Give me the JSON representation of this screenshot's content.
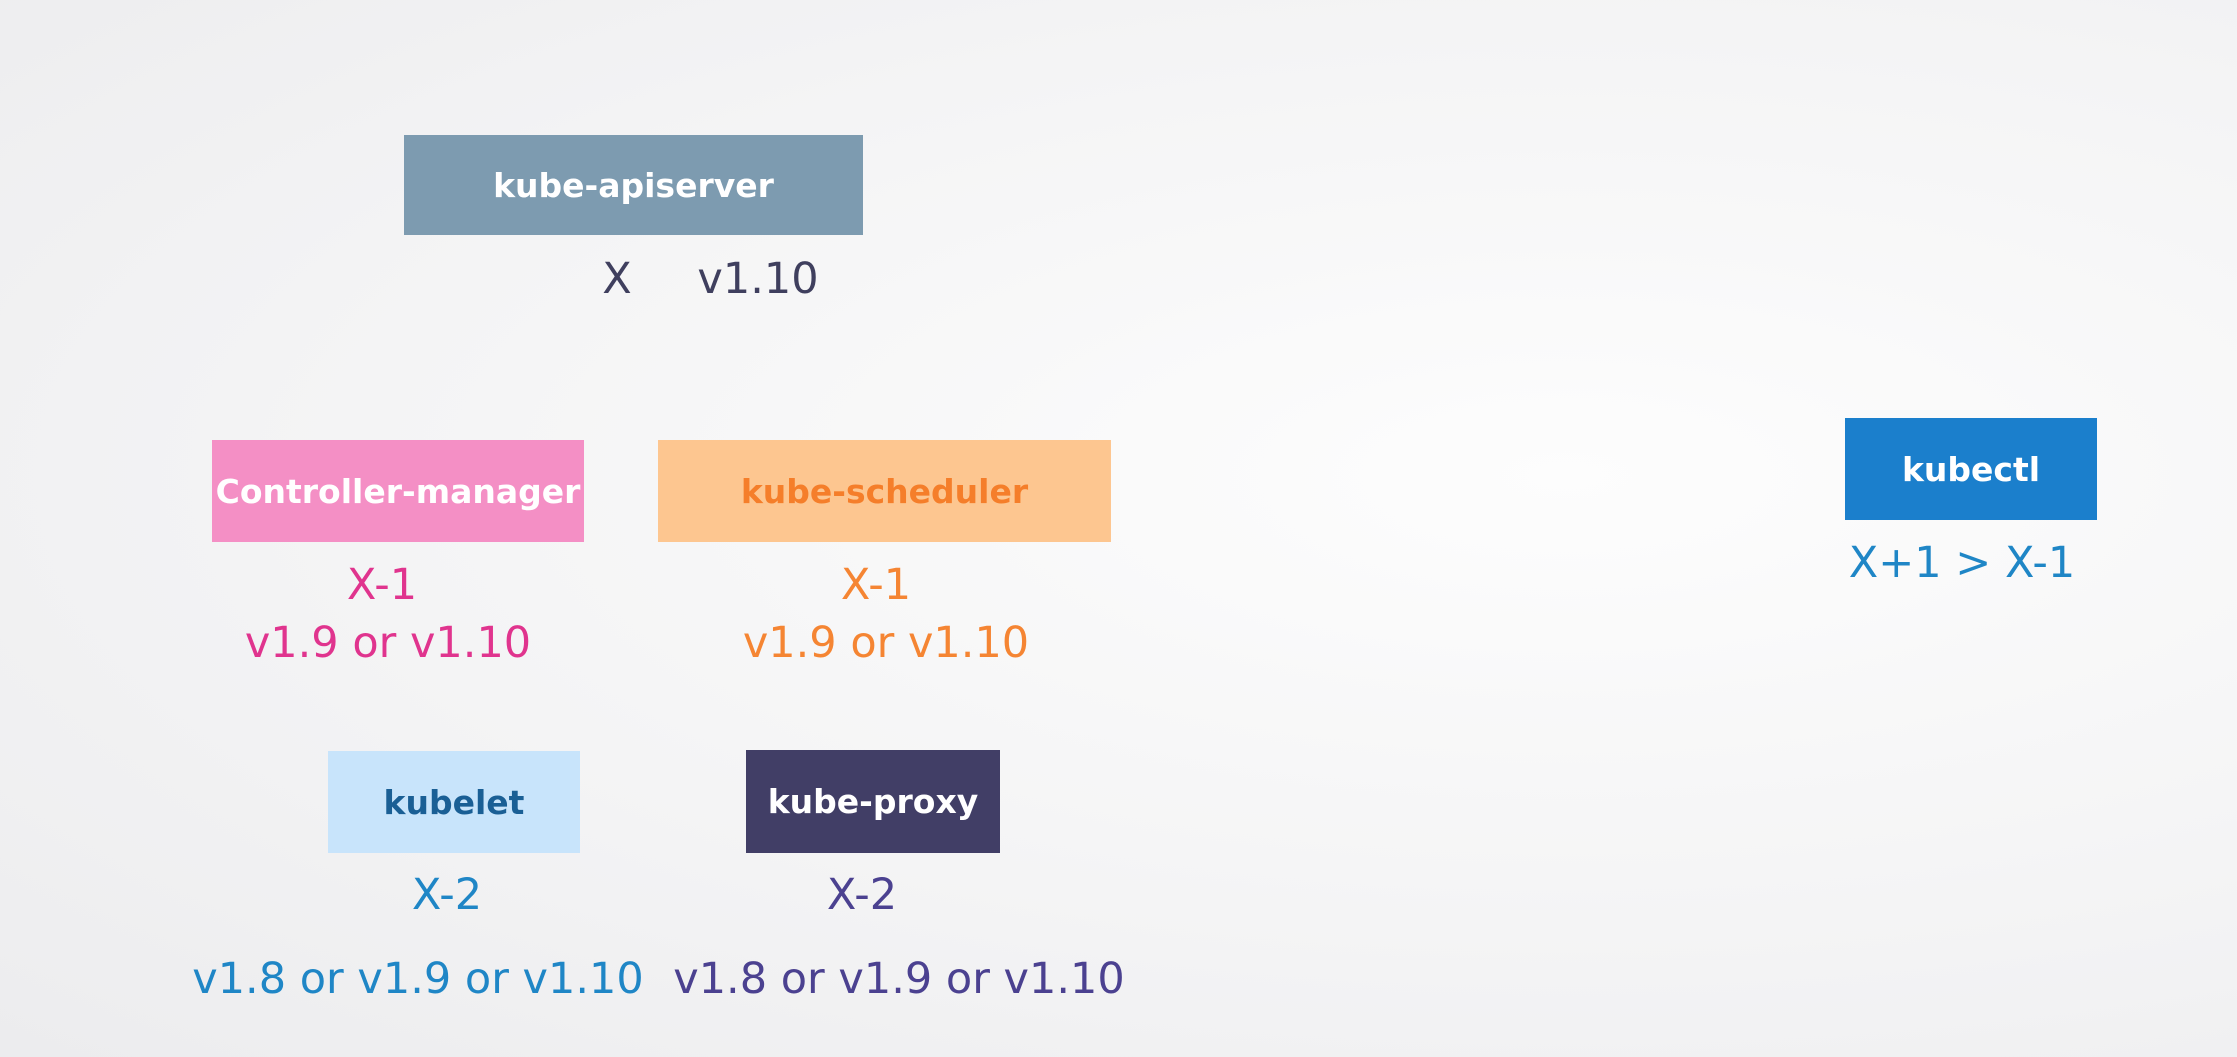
{
  "components": {
    "apiserver": {
      "name": "kube-apiserver",
      "rule": "X",
      "versions": "v1.10"
    },
    "controller_manager": {
      "name": "Controller-manager",
      "rule": "X-1",
      "versions": "v1.9 or v1.10"
    },
    "scheduler": {
      "name": "kube-scheduler",
      "rule": "X-1",
      "versions": "v1.9 or v1.10"
    },
    "kubelet": {
      "name": "kubelet",
      "rule": "X-2",
      "versions": "v1.8 or v1.9 or v1.10"
    },
    "kube_proxy": {
      "name": "kube-proxy",
      "rule": "X-2",
      "versions": "v1.8 or v1.9 or v1.10"
    },
    "kubectl": {
      "name": "kubectl",
      "rule": "X+1 > X-1"
    }
  },
  "colors": {
    "apiserver_box": "#7d9bb0",
    "controller_manager_box": "#f48fc5",
    "controller_manager_text": "#e0348e",
    "scheduler_box": "#fdc690",
    "scheduler_text": "#f58533",
    "kubelet_box": "#c8e4fb",
    "kubelet_text": "#1f86c6",
    "kube_proxy_box": "#413e66",
    "kube_proxy_text": "#4b4190",
    "kubectl_box": "#1b7fcc",
    "kubectl_text": "#1f86c6"
  }
}
